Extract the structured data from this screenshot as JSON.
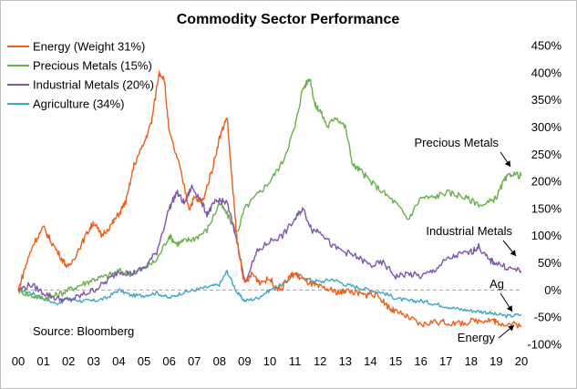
{
  "chart_data": {
    "type": "line",
    "title": "Commodity Sector Performance",
    "source": "Source:  Bloomberg",
    "x_tick_labels": [
      "00",
      "01",
      "02",
      "03",
      "04",
      "05",
      "06",
      "07",
      "08",
      "09",
      "10",
      "11",
      "12",
      "13",
      "14",
      "15",
      "16",
      "17",
      "18",
      "19",
      "20"
    ],
    "y_tick_labels": [
      "450%",
      "400%",
      "350%",
      "300%",
      "250%",
      "200%",
      "150%",
      "100%",
      "50%",
      "0%",
      "-50%",
      "-100%"
    ],
    "ylim": [
      -100,
      450
    ],
    "xlim": [
      2000,
      2020
    ],
    "baseline": 0,
    "colors": {
      "energy": "#e8601c",
      "precious": "#6ab04c",
      "industrial": "#7e57a8",
      "agriculture": "#3ea8c4"
    },
    "annotations": [
      {
        "label": "Precious Metals",
        "series": "Precious Metals"
      },
      {
        "label": "Industrial Metals",
        "series": "Industrial Metals"
      },
      {
        "label": "Ag",
        "series": "Agriculture"
      },
      {
        "label": "Energy",
        "series": "Energy"
      }
    ],
    "series": [
      {
        "name": "Energy (Weight 31%)",
        "key": "energy",
        "x": [
          2000,
          2000.3,
          2000.6,
          2001,
          2001.3,
          2001.7,
          2002,
          2002.4,
          2002.8,
          2003,
          2003.3,
          2003.7,
          2004,
          2004.3,
          2004.6,
          2005,
          2005.3,
          2005.6,
          2005.8,
          2006,
          2006.4,
          2006.8,
          2007,
          2007.3,
          2007.7,
          2008,
          2008.3,
          2008.5,
          2008.7,
          2009,
          2009.3,
          2009.6,
          2010,
          2010.4,
          2010.8,
          2011,
          2011.3,
          2011.7,
          2012,
          2012.4,
          2012.8,
          2013,
          2013.4,
          2013.8,
          2014,
          2014.4,
          2014.8,
          2015,
          2015.5,
          2016,
          2016.5,
          2017,
          2017.5,
          2018,
          2018.5,
          2018.9,
          2019,
          2019.5,
          2020
        ],
        "y": [
          0,
          45,
          85,
          115,
          90,
          60,
          40,
          75,
          110,
          125,
          100,
          120,
          140,
          165,
          230,
          270,
          310,
          400,
          390,
          290,
          230,
          150,
          170,
          160,
          220,
          280,
          320,
          200,
          90,
          10,
          30,
          15,
          20,
          0,
          25,
          30,
          20,
          10,
          5,
          0,
          -5,
          0,
          -5,
          -10,
          -5,
          -15,
          -35,
          -40,
          -50,
          -65,
          -58,
          -60,
          -62,
          -58,
          -55,
          -55,
          -60,
          -62,
          -65
        ]
      },
      {
        "name": "Precious Metals (15%)",
        "key": "precious",
        "x": [
          2000,
          2000.5,
          2001,
          2001.5,
          2002,
          2002.5,
          2003,
          2003.5,
          2004,
          2004.5,
          2005,
          2005.5,
          2006,
          2006.3,
          2006.6,
          2007,
          2007.5,
          2008,
          2008.3,
          2008.7,
          2009,
          2009.5,
          2010,
          2010.5,
          2011,
          2011.3,
          2011.6,
          2011.8,
          2012,
          2012.3,
          2012.6,
          2013,
          2013.3,
          2013.6,
          2014,
          2014.5,
          2015,
          2015.5,
          2016,
          2016.5,
          2017,
          2017.5,
          2018,
          2018.5,
          2019,
          2019.3,
          2019.6,
          2020
        ],
        "y": [
          0,
          -10,
          -15,
          -10,
          0,
          10,
          20,
          25,
          35,
          30,
          40,
          55,
          100,
          85,
          90,
          95,
          110,
          160,
          140,
          105,
          150,
          175,
          200,
          235,
          300,
          370,
          390,
          340,
          330,
          300,
          320,
          300,
          230,
          220,
          200,
          180,
          160,
          130,
          170,
          170,
          180,
          175,
          165,
          155,
          170,
          200,
          215,
          210
        ]
      },
      {
        "name": "Industrial Metals (20%)",
        "key": "industrial",
        "x": [
          2000,
          2000.5,
          2001,
          2001.5,
          2002,
          2002.5,
          2003,
          2003.5,
          2004,
          2004.5,
          2005,
          2005.5,
          2006,
          2006.3,
          2006.6,
          2006.9,
          2007.2,
          2007.5,
          2007.8,
          2008,
          2008.3,
          2008.7,
          2009,
          2009.5,
          2010,
          2010.5,
          2011,
          2011.3,
          2011.7,
          2012,
          2012.5,
          2013,
          2013.5,
          2014,
          2014.5,
          2015,
          2015.5,
          2016,
          2016.5,
          2017,
          2017.5,
          2018,
          2018.3,
          2018.7,
          2019,
          2019.5,
          2020
        ],
        "y": [
          0,
          10,
          -5,
          -15,
          -20,
          -10,
          0,
          15,
          35,
          30,
          40,
          70,
          150,
          180,
          160,
          190,
          170,
          140,
          160,
          165,
          160,
          90,
          15,
          70,
          90,
          100,
          130,
          150,
          110,
          110,
          80,
          70,
          60,
          45,
          50,
          25,
          30,
          25,
          35,
          55,
          65,
          70,
          80,
          55,
          50,
          40,
          35
        ]
      },
      {
        "name": "Agriculture (34%)",
        "key": "agriculture",
        "x": [
          2000,
          2000.5,
          2001,
          2001.5,
          2002,
          2002.5,
          2003,
          2003.5,
          2004,
          2004.5,
          2005,
          2005.5,
          2006,
          2006.5,
          2007,
          2007.5,
          2008,
          2008.3,
          2008.7,
          2009,
          2009.5,
          2010,
          2010.5,
          2011,
          2011.5,
          2012,
          2012.5,
          2013,
          2013.5,
          2014,
          2014.5,
          2015,
          2015.5,
          2016,
          2016.5,
          2017,
          2017.5,
          2018,
          2018.5,
          2019,
          2019.5,
          2020
        ],
        "y": [
          0,
          -5,
          -15,
          -25,
          -15,
          -20,
          -20,
          -15,
          0,
          -10,
          -10,
          -5,
          -15,
          -5,
          0,
          5,
          10,
          35,
          -5,
          -20,
          -15,
          0,
          10,
          30,
          20,
          15,
          20,
          10,
          5,
          0,
          -5,
          -15,
          -20,
          -20,
          -25,
          -30,
          -35,
          -38,
          -40,
          -45,
          -48,
          -45
        ]
      }
    ]
  }
}
